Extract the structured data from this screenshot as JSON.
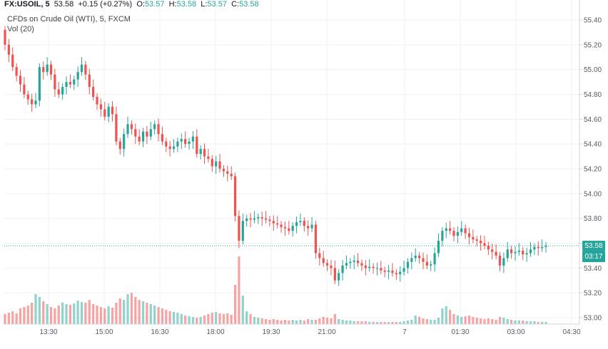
{
  "header": {
    "symbol": "FX:USOIL, 5",
    "last": "53.58",
    "change": "+0.15 (+0.27%)",
    "o_label": "O:",
    "o_value": "53.57",
    "h_label": "H:",
    "h_value": "53.58",
    "l_label": "L:",
    "l_value": "53.57",
    "c_label": "C:",
    "c_value": "53.58"
  },
  "subtitle": "CFDs on Crude Oil (WTI), 5, FXCM",
  "volume_label": "Vol (20)",
  "price_tag": "53.58",
  "time_tag": "03:17",
  "colors": {
    "up": "#26a69a",
    "down": "#ef5350",
    "up_vol": "#8fd3cc",
    "down_vol": "#f5a3a3",
    "grid": "#eef0f3",
    "axis": "#d1d4dc",
    "price_line": "#26a69a"
  },
  "chart_data": {
    "type": "candlestick",
    "y_axis": {
      "range": [
        52.97,
        55.49
      ],
      "ticks": [
        "53.00",
        "53.20",
        "53.40",
        "53.60",
        "53.80",
        "54.00",
        "54.20",
        "54.40",
        "54.60",
        "54.80",
        "55.00",
        "55.20",
        "55.40"
      ],
      "position": "right"
    },
    "x_axis": {
      "ticks": [
        "13:30",
        "15:00",
        "16:30",
        "18:00",
        "19:30",
        "21:00",
        "7",
        "01:30",
        "03:00",
        "04:30"
      ]
    },
    "grid": true,
    "last_price": 53.58,
    "closes": [
      55.2,
      55.12,
      55.02,
      54.95,
      54.88,
      54.8,
      54.76,
      54.72,
      54.75,
      55.02,
      54.98,
      55.04,
      54.96,
      54.84,
      54.8,
      54.86,
      54.9,
      54.88,
      54.92,
      54.98,
      55.04,
      54.96,
      54.86,
      54.78,
      54.72,
      54.68,
      54.62,
      54.7,
      54.64,
      54.42,
      54.36,
      54.48,
      54.56,
      54.52,
      54.46,
      54.42,
      54.5,
      54.46,
      54.52,
      54.56,
      54.48,
      54.42,
      54.38,
      54.36,
      54.38,
      54.42,
      54.44,
      54.4,
      54.42,
      54.46,
      54.32,
      54.36,
      54.3,
      54.28,
      54.22,
      54.26,
      54.2,
      54.18,
      54.16,
      54.14,
      53.82,
      53.62,
      53.78,
      53.8,
      53.79,
      53.8,
      53.81,
      53.8,
      53.79,
      53.78,
      53.76,
      53.75,
      53.73,
      53.72,
      53.7,
      53.74,
      53.77,
      53.78,
      53.74,
      53.72,
      53.75,
      53.52,
      53.48,
      53.44,
      53.42,
      53.4,
      53.3,
      53.36,
      53.42,
      53.44,
      53.45,
      53.46,
      53.44,
      53.42,
      53.4,
      53.41,
      53.4,
      53.4,
      53.38,
      53.37,
      53.38,
      53.36,
      53.35,
      53.37,
      53.4,
      53.45,
      53.48,
      53.5,
      53.48,
      53.45,
      53.42,
      53.43,
      53.52,
      53.62,
      53.7,
      53.72,
      53.7,
      53.66,
      53.69,
      53.72,
      53.68,
      53.65,
      53.63,
      53.62,
      53.6,
      53.58,
      53.55,
      53.53,
      53.5,
      53.42,
      53.48,
      53.55,
      53.52,
      53.53,
      53.54,
      53.51,
      53.52,
      53.55,
      53.57,
      53.56,
      53.57,
      53.58
    ],
    "volumes": [
      14,
      16,
      18,
      15,
      22,
      24,
      26,
      30,
      42,
      38,
      32,
      28,
      24,
      22,
      26,
      30,
      28,
      27,
      29,
      33,
      31,
      30,
      34,
      28,
      26,
      24,
      22,
      25,
      23,
      30,
      36,
      34,
      42,
      44,
      38,
      34,
      32,
      30,
      28,
      26,
      24,
      22,
      20,
      18,
      17,
      16,
      14,
      12,
      11,
      10,
      9,
      10,
      12,
      14,
      16,
      17,
      15,
      14,
      15,
      13,
      55,
      95,
      40,
      18,
      14,
      10,
      9,
      8,
      7,
      6,
      7,
      6,
      5,
      6,
      5,
      6,
      5,
      6,
      5,
      7,
      6,
      6,
      8,
      10,
      9,
      8,
      14,
      7,
      6,
      5,
      5,
      4,
      4,
      4,
      4,
      3,
      3,
      3,
      3,
      3,
      3,
      3,
      3,
      3,
      4,
      5,
      6,
      12,
      10,
      8,
      7,
      6,
      6,
      9,
      22,
      25,
      20,
      14,
      12,
      10,
      11,
      12,
      10,
      9,
      8,
      7,
      8,
      7,
      6,
      10,
      9,
      7,
      6,
      5,
      5,
      5,
      4,
      4,
      4,
      3,
      3,
      3
    ]
  }
}
